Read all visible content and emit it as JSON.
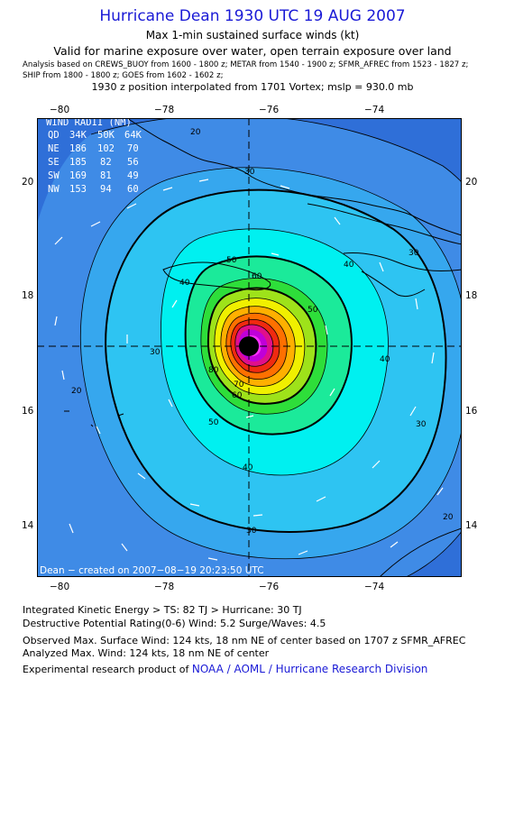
{
  "header": {
    "title": "Hurricane Dean 1930 UTC 19 AUG 2007",
    "subtitle": "Max 1-min sustained surface winds (kt)",
    "validity": "Valid for marine exposure over water, open terrain exposure over land",
    "analysis_line1": "Analysis based on  CREWS_BUOY from 1600 - 1800 z;  METAR from 1540 - 1900 z;  SFMR_AFREC from 1523 - 1827 z;",
    "analysis_line2": "SHIP from 1800 - 1800 z;  GOES from 1602 - 1602 z;",
    "interpolation": "1930 z position interpolated from 1701 Vortex; mslp = 930.0 mb"
  },
  "axes": {
    "lon_labels": [
      "−80",
      "−78",
      "−76",
      "−74"
    ],
    "lat_labels": [
      "20",
      "18",
      "16",
      "14"
    ]
  },
  "wind_radii": {
    "title": "WIND RADII (NM)",
    "header": [
      "QD",
      "34K",
      "50K",
      "64K"
    ],
    "rows": [
      [
        "NE",
        "186",
        "102",
        "70"
      ],
      [
        "SE",
        "185",
        "82",
        "56"
      ],
      [
        "SW",
        "169",
        "81",
        "49"
      ],
      [
        "NW",
        "153",
        "94",
        "60"
      ]
    ]
  },
  "contour_labels": [
    "20",
    "20",
    "20",
    "30",
    "30",
    "30",
    "30",
    "30",
    "40",
    "40",
    "40",
    "40",
    "50",
    "50",
    "50",
    "60",
    "60",
    "70",
    "80"
  ],
  "credit": "Dean − created on 2007−08−19 20:23:50 UTC",
  "footer": {
    "ike": "Integrated Kinetic Energy > TS: 82 TJ   > Hurricane: 30 TJ",
    "dpr": "Destructive Potential Rating(0-6)   Wind: 5.2 Surge/Waves: 4.5",
    "observed": "Observed Max. Surface Wind: 124 kts, 18 nm NE of center based on 1707 z SFMR_AFREC",
    "analyzed": "Analyzed Max. Wind: 124 kts, 18 nm NE of center",
    "product_prefix": "Experimental research product of ",
    "product_org": "NOAA / AOML / Hurricane Research Division"
  },
  "colors": {
    "background": "#2f6fd8",
    "land_outline": "#000000",
    "levels": [
      "#3f8be6",
      "#36a7ee",
      "#2ec4f2",
      "#00f0f0",
      "#1bea9a",
      "#2ede3a",
      "#9ee21a",
      "#f0f000",
      "#ffb000",
      "#ff7000",
      "#f02a10",
      "#e0108a",
      "#c000d8",
      "#ff30ff"
    ]
  }
}
